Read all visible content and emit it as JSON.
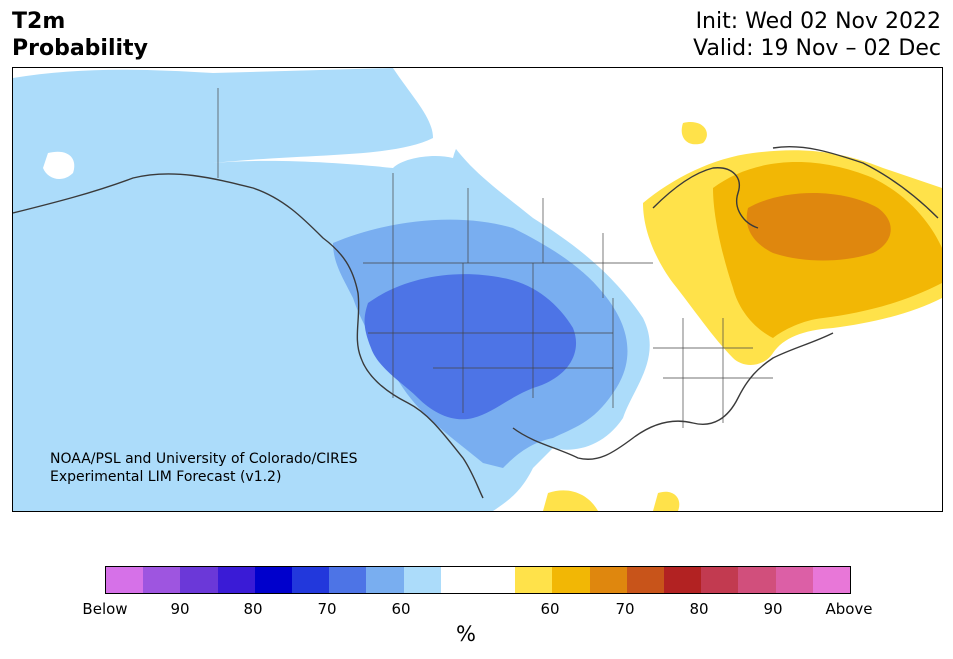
{
  "header": {
    "title_line1": "T2m",
    "title_line2": "Probability",
    "init": "Init: Wed 02 Nov 2022",
    "valid": "Valid: 19 Nov – 02 Dec"
  },
  "credit": {
    "line1": "NOAA/PSL and University of Colorado/CIRES",
    "line2": "Experimental LIM Forecast (v1.2)"
  },
  "colorbar": {
    "colors": [
      "#d671e8",
      "#9e55e0",
      "#6b38d8",
      "#3a1bd6",
      "#0000cc",
      "#2238dc",
      "#4d74e6",
      "#79aef0",
      "#acdcfa",
      "#ffffff",
      "#ffffff",
      "#ffe24a",
      "#f2b705",
      "#df870e",
      "#c8541a",
      "#b22222",
      "#c23a50",
      "#d14f7c",
      "#dc5fa6",
      "#e877d8"
    ],
    "ticks": [
      "Below",
      "90",
      "80",
      "70",
      "60",
      "60",
      "70",
      "80",
      "90",
      "Above"
    ],
    "unit": "%"
  },
  "map": {
    "region": "North America",
    "colors": {
      "below_60": "#acdcfa",
      "below_70": "#79aef0",
      "below_80": "#4d74e6",
      "above_60": "#ffe24a",
      "above_70": "#f2b705",
      "above_80": "#df870e",
      "coast": "#3a3a3a"
    }
  }
}
